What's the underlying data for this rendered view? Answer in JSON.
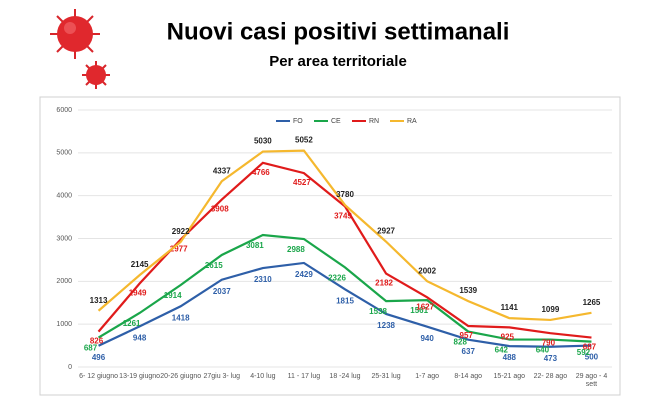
{
  "chart_data": {
    "type": "line",
    "title": "Nuovi casi positivi settimanali",
    "subtitle": "Per area territoriale",
    "categories": [
      "6- 12 giugno",
      "13-19 giugno",
      "20-26 giugno",
      "27giu 3- lug",
      "4-10 lug",
      "11 - 17 lug",
      "18 -24 lug",
      "25-31 lug",
      "1-7 ago",
      "8-14 ago",
      "15-21 ago",
      "22- 28 ago",
      "29 ago - 4 sett"
    ],
    "series": [
      {
        "name": "FO",
        "color": "#2e5fa8",
        "values": [
          496,
          948,
          1418,
          2037,
          2310,
          2429,
          1815,
          1238,
          940,
          637,
          488,
          473,
          500
        ]
      },
      {
        "name": "CE",
        "color": "#1aa64a",
        "values": [
          687,
          1261,
          1914,
          2615,
          3081,
          2988,
          2326,
          1538,
          1561,
          828,
          642,
          640,
          592
        ]
      },
      {
        "name": "RN",
        "color": "#e01b1b",
        "values": [
          826,
          1949,
          2977,
          3908,
          4766,
          4527,
          3749,
          2182,
          1627,
          957,
          925,
          790,
          687
        ]
      },
      {
        "name": "RA",
        "color": "#f5b82e",
        "values": [
          1313,
          2145,
          2922,
          4337,
          5030,
          5052,
          3780,
          2927,
          2002,
          1539,
          1141,
          1099,
          1265
        ]
      }
    ],
    "ylim": [
      0,
      6000
    ],
    "yticks": [
      0,
      1000,
      2000,
      3000,
      4000,
      5000,
      6000
    ],
    "grid": true
  }
}
